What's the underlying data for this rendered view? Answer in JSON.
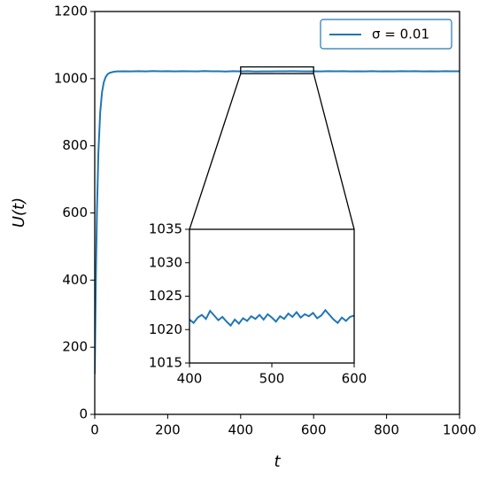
{
  "chart_data": [
    {
      "type": "line",
      "x_label": "t",
      "y_label": "U(t)",
      "xlim": [
        0,
        1000
      ],
      "ylim": [
        0,
        1200
      ],
      "xticks": [
        0,
        200,
        400,
        600,
        800,
        1000
      ],
      "yticks": [
        0,
        200,
        400,
        600,
        800,
        1000,
        1200
      ],
      "legend": "upper right",
      "x": [
        0,
        3,
        6,
        10,
        15,
        20,
        25,
        30,
        35,
        40,
        50,
        60,
        80,
        100,
        120,
        140,
        160,
        180,
        200,
        220,
        240,
        260,
        280,
        300,
        320,
        340,
        360,
        380,
        400,
        420,
        440,
        460,
        480,
        500,
        520,
        540,
        560,
        580,
        600,
        620,
        640,
        660,
        680,
        700,
        720,
        740,
        760,
        780,
        800,
        820,
        840,
        860,
        880,
        900,
        920,
        940,
        960,
        980,
        1000
      ],
      "series": [
        {
          "name": "σ = 0.01",
          "color": "#1f77b4",
          "values": [
            120,
            400,
            600,
            780,
            900,
            960,
            990,
            1005,
            1013,
            1017,
            1020,
            1021.5,
            1022,
            1021.5,
            1022.3,
            1021.8,
            1022.6,
            1021.9,
            1022.2,
            1021.6,
            1022.4,
            1022.0,
            1021.7,
            1022.5,
            1021.9,
            1022.1,
            1021.4,
            1022.3,
            1021.5,
            1022.2,
            1021.3,
            1021.6,
            1021.8,
            1021.9,
            1022.0,
            1022.3,
            1022.1,
            1021.8,
            1022.1,
            1021.6,
            1022.2,
            1021.9,
            1022.4,
            1021.7,
            1022.0,
            1021.5,
            1022.3,
            1021.8,
            1022.1,
            1021.6,
            1022.4,
            1021.9,
            1022.2,
            1021.7,
            1022.0,
            1021.8,
            1022.3,
            1021.9,
            1022.0
          ]
        }
      ]
    },
    {
      "type": "line",
      "xlim": [
        400,
        600
      ],
      "ylim": [
        1015,
        1035
      ],
      "xticks": [
        400,
        500,
        600
      ],
      "yticks": [
        1015,
        1020,
        1025,
        1030,
        1035
      ],
      "x": [
        400,
        405,
        410,
        415,
        420,
        425,
        430,
        435,
        440,
        445,
        450,
        455,
        460,
        465,
        470,
        475,
        480,
        485,
        490,
        495,
        500,
        505,
        510,
        515,
        520,
        525,
        530,
        535,
        540,
        545,
        550,
        555,
        560,
        565,
        570,
        575,
        580,
        585,
        590,
        595,
        600
      ],
      "series": [
        {
          "color": "#1f77b4",
          "values": [
            1021.5,
            1021.0,
            1021.8,
            1022.2,
            1021.6,
            1022.8,
            1022.1,
            1021.4,
            1021.9,
            1021.2,
            1020.6,
            1021.5,
            1020.9,
            1021.7,
            1021.3,
            1022.0,
            1021.6,
            1022.2,
            1021.5,
            1022.3,
            1021.8,
            1021.2,
            1022.0,
            1021.6,
            1022.4,
            1021.9,
            1022.6,
            1021.8,
            1022.3,
            1022.0,
            1022.5,
            1021.7,
            1022.1,
            1022.9,
            1022.2,
            1021.5,
            1021.0,
            1021.8,
            1021.3,
            1021.9,
            1022.1
          ]
        }
      ]
    }
  ]
}
